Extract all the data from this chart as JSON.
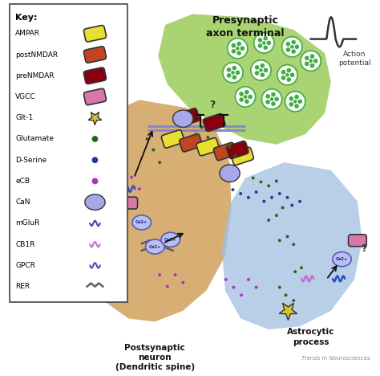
{
  "title_presynaptic": "Presynaptic\naxon terminal",
  "title_postsynaptic": "Postsynaptic\nneuron\n(Dendritic spine)",
  "title_astrocytic": "Astrocytic\nprocess",
  "title_action": "Action\npotential",
  "watermark": "Trends in Neurosciences",
  "key_title": "Key:",
  "key_items": [
    {
      "label": "AMPAR",
      "color": "#e8e030",
      "type": "pill"
    },
    {
      "label": "postNMDAR",
      "color": "#c04520",
      "type": "pill"
    },
    {
      "label": "preNMDAR",
      "color": "#880010",
      "type": "pill"
    },
    {
      "label": "VGCC",
      "color": "#d878a8",
      "type": "pill"
    },
    {
      "label": "Glt-1",
      "color": "#d4c030",
      "type": "star"
    },
    {
      "label": "Glutamate",
      "color": "#226618",
      "type": "dot"
    },
    {
      "label": "D-Serine",
      "color": "#1a3a9a",
      "type": "dot"
    },
    {
      "label": "eCB",
      "color": "#b030c0",
      "type": "dot"
    },
    {
      "label": "CaN",
      "color": "#a8a8e8",
      "type": "blob"
    },
    {
      "label": "mGluR",
      "color": "#3050bb",
      "type": "coil"
    },
    {
      "label": "CB1R",
      "color": "#c070d0",
      "type": "coil"
    },
    {
      "label": "GPCR",
      "color": "#4050bb",
      "type": "coil"
    },
    {
      "label": "RER",
      "color": "#606060",
      "type": "zigzag"
    }
  ],
  "bg_color": "#ffffff",
  "presynaptic_color": "#9ecf60",
  "postsynaptic_color": "#d4a868",
  "astrocytic_color": "#a0c0e0",
  "key_box_color": "#ffffff",
  "key_border_color": "#444444"
}
